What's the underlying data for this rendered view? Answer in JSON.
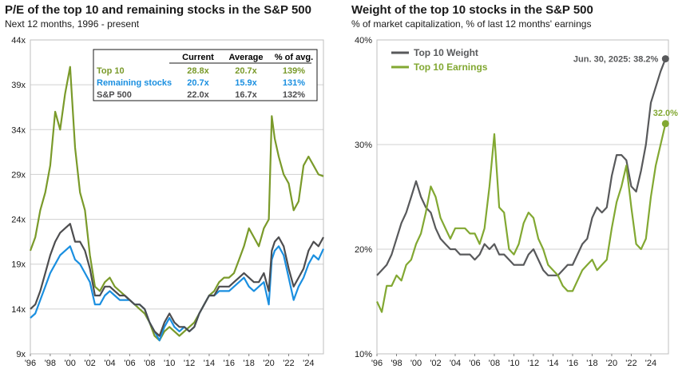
{
  "colors": {
    "top10": "#7a9a2a",
    "remaining": "#1a8fe0",
    "sp500": "#4d4d4f",
    "weight": "#58595b",
    "earnings": "#82a832",
    "grid": "#d0d0d0"
  },
  "left": {
    "title": "P/E of the top 10 and remaining stocks in the S&P 500",
    "subtitle": "Next 12 months, 1996 - present",
    "table": {
      "headers": [
        "",
        "Current",
        "Average",
        "% of avg."
      ],
      "rows": [
        {
          "name": "Top 10",
          "current": "28.8x",
          "average": "20.7x",
          "pct": "139%",
          "color": "#7a9a2a"
        },
        {
          "name": "Remaining stocks",
          "current": "20.7x",
          "average": "15.9x",
          "pct": "131%",
          "color": "#1a8fe0"
        },
        {
          "name": "S&P 500",
          "current": "22.0x",
          "average": "16.7x",
          "pct": "132%",
          "color": "#4d4d4f"
        }
      ]
    }
  },
  "right": {
    "title": "Weight of the top 10 stocks in the S&P 500",
    "subtitle": "% of market capitalization, % of last 12 months' earnings",
    "annotation_weight": "Jun. 30, 2025: 38.2%",
    "annotation_earnings": "32.0%"
  },
  "chart_data": [
    {
      "type": "line",
      "title": "P/E of the top 10 and remaining stocks in the S&P 500",
      "subtitle": "Next 12 months, 1996 - present",
      "ylim": [
        9,
        44
      ],
      "yticks": [
        9,
        14,
        19,
        24,
        29,
        34,
        39,
        44
      ],
      "ytick_labels": [
        "9x",
        "14x",
        "19x",
        "24x",
        "29x",
        "34x",
        "39x",
        "44x"
      ],
      "xlim": [
        1996,
        2025.5
      ],
      "xticks": [
        1996,
        1998,
        2000,
        2002,
        2004,
        2006,
        2008,
        2010,
        2012,
        2014,
        2016,
        2018,
        2020,
        2022,
        2024
      ],
      "xtick_labels": [
        "'96",
        "'98",
        "'00",
        "'02",
        "'04",
        "'06",
        "'08",
        "'10",
        "'12",
        "'14",
        "'16",
        "'18",
        "'20",
        "'22",
        "'24"
      ],
      "series": [
        {
          "name": "Top 10",
          "color": "#7a9a2a",
          "x": [
            1996.0,
            1996.5,
            1997.0,
            1997.5,
            1998.0,
            1998.5,
            1999.0,
            1999.5,
            2000.0,
            2000.5,
            2001.0,
            2001.5,
            2002.0,
            2002.5,
            2003.0,
            2003.5,
            2004.0,
            2004.5,
            2005.0,
            2005.5,
            2006.0,
            2006.5,
            2007.0,
            2007.5,
            2008.0,
            2008.5,
            2009.0,
            2009.5,
            2010.0,
            2010.5,
            2011.0,
            2011.5,
            2012.0,
            2012.5,
            2013.0,
            2013.5,
            2014.0,
            2014.5,
            2015.0,
            2015.5,
            2016.0,
            2016.5,
            2017.0,
            2017.5,
            2018.0,
            2018.5,
            2019.0,
            2019.5,
            2020.0,
            2020.3,
            2020.6,
            2021.0,
            2021.5,
            2022.0,
            2022.5,
            2023.0,
            2023.5,
            2024.0,
            2024.5,
            2025.0,
            2025.5
          ],
          "values": [
            20.5,
            22.0,
            25.0,
            27.0,
            30.0,
            36.0,
            34.0,
            38.0,
            41.0,
            32.0,
            27.0,
            25.0,
            20.0,
            16.5,
            16.0,
            17.0,
            17.5,
            16.5,
            16.0,
            15.5,
            15.0,
            14.5,
            14.0,
            13.5,
            12.5,
            11.0,
            10.5,
            11.5,
            12.0,
            11.5,
            11.0,
            11.5,
            12.0,
            12.5,
            13.5,
            14.5,
            15.5,
            16.0,
            17.0,
            17.5,
            17.5,
            18.0,
            19.5,
            21.0,
            23.0,
            22.0,
            21.0,
            23.0,
            24.0,
            35.5,
            33.0,
            31.0,
            29.0,
            28.0,
            25.0,
            26.0,
            30.0,
            31.0,
            30.0,
            29.0,
            28.8
          ]
        },
        {
          "name": "Remaining stocks",
          "color": "#1a8fe0",
          "x": [
            1996.0,
            1996.5,
            1997.0,
            1997.5,
            1998.0,
            1998.5,
            1999.0,
            1999.5,
            2000.0,
            2000.5,
            2001.0,
            2001.5,
            2002.0,
            2002.5,
            2003.0,
            2003.5,
            2004.0,
            2004.5,
            2005.0,
            2005.5,
            2006.0,
            2006.5,
            2007.0,
            2007.5,
            2008.0,
            2008.5,
            2009.0,
            2009.5,
            2010.0,
            2010.5,
            2011.0,
            2011.5,
            2012.0,
            2012.5,
            2013.0,
            2013.5,
            2014.0,
            2014.5,
            2015.0,
            2015.5,
            2016.0,
            2016.5,
            2017.0,
            2017.5,
            2018.0,
            2018.5,
            2019.0,
            2019.5,
            2020.0,
            2020.3,
            2020.6,
            2021.0,
            2021.5,
            2022.0,
            2022.5,
            2023.0,
            2023.5,
            2024.0,
            2024.5,
            2025.0,
            2025.5
          ],
          "values": [
            13.0,
            13.5,
            15.0,
            16.5,
            18.0,
            19.0,
            20.0,
            20.5,
            21.0,
            19.5,
            19.0,
            18.0,
            17.0,
            14.5,
            14.5,
            15.5,
            16.0,
            15.5,
            15.0,
            15.0,
            15.0,
            14.5,
            14.5,
            14.0,
            12.5,
            11.5,
            10.5,
            12.0,
            13.0,
            12.0,
            11.5,
            12.0,
            11.5,
            12.0,
            13.5,
            14.5,
            15.5,
            15.5,
            16.0,
            16.0,
            16.0,
            16.5,
            17.0,
            17.5,
            16.5,
            16.0,
            16.5,
            17.0,
            14.5,
            19.5,
            20.5,
            21.0,
            20.0,
            17.5,
            15.0,
            16.5,
            17.5,
            19.0,
            20.0,
            19.5,
            20.7
          ]
        },
        {
          "name": "S&P 500",
          "color": "#4d4d4f",
          "x": [
            1996.0,
            1996.5,
            1997.0,
            1997.5,
            1998.0,
            1998.5,
            1999.0,
            1999.5,
            2000.0,
            2000.5,
            2001.0,
            2001.5,
            2002.0,
            2002.5,
            2003.0,
            2003.5,
            2004.0,
            2004.5,
            2005.0,
            2005.5,
            2006.0,
            2006.5,
            2007.0,
            2007.5,
            2008.0,
            2008.5,
            2009.0,
            2009.5,
            2010.0,
            2010.5,
            2011.0,
            2011.5,
            2012.0,
            2012.5,
            2013.0,
            2013.5,
            2014.0,
            2014.5,
            2015.0,
            2015.5,
            2016.0,
            2016.5,
            2017.0,
            2017.5,
            2018.0,
            2018.5,
            2019.0,
            2019.5,
            2020.0,
            2020.3,
            2020.6,
            2021.0,
            2021.5,
            2022.0,
            2022.5,
            2023.0,
            2023.5,
            2024.0,
            2024.5,
            2025.0,
            2025.5
          ],
          "values": [
            14.0,
            14.5,
            16.0,
            18.0,
            20.0,
            21.5,
            22.5,
            23.0,
            23.5,
            21.5,
            21.5,
            20.5,
            18.5,
            15.5,
            15.5,
            16.5,
            16.5,
            16.0,
            15.5,
            15.5,
            15.0,
            14.5,
            14.5,
            14.0,
            12.5,
            11.5,
            11.0,
            12.5,
            13.5,
            12.5,
            12.0,
            12.0,
            11.5,
            12.0,
            13.5,
            14.5,
            15.5,
            15.5,
            16.5,
            16.5,
            16.5,
            17.0,
            17.5,
            18.0,
            17.5,
            17.0,
            17.0,
            18.0,
            16.0,
            20.5,
            21.5,
            22.0,
            21.0,
            18.5,
            16.5,
            17.5,
            18.5,
            20.5,
            21.5,
            21.0,
            22.0
          ]
        }
      ]
    },
    {
      "type": "line",
      "title": "Weight of the top 10 stocks in the S&P 500",
      "subtitle": "% of market capitalization, % of last 12 months' earnings",
      "ylim": [
        10,
        40
      ],
      "yticks": [
        10,
        20,
        30,
        40
      ],
      "ytick_labels": [
        "10%",
        "20%",
        "30%",
        "40%"
      ],
      "xlim": [
        1996,
        2025.8
      ],
      "xticks": [
        1996,
        1998,
        2000,
        2002,
        2004,
        2006,
        2008,
        2010,
        2012,
        2014,
        2016,
        2018,
        2020,
        2022,
        2024
      ],
      "xtick_labels": [
        "'96",
        "'98",
        "'00",
        "'02",
        "'04",
        "'06",
        "'08",
        "'10",
        "'12",
        "'14",
        "'16",
        "'18",
        "'20",
        "'22",
        "'24"
      ],
      "annotations": [
        {
          "text": "Jun. 30, 2025: 38.2%",
          "x": 2025.5,
          "y": 38.2
        },
        {
          "text": "32.0%",
          "x": 2025.5,
          "y": 32.0
        }
      ],
      "series": [
        {
          "name": "Top 10 Weight",
          "color": "#58595b",
          "x": [
            1996.0,
            1996.5,
            1997.0,
            1997.5,
            1998.0,
            1998.5,
            1999.0,
            1999.5,
            2000.0,
            2000.5,
            2001.0,
            2001.5,
            2002.0,
            2002.5,
            2003.0,
            2003.5,
            2004.0,
            2004.5,
            2005.0,
            2005.5,
            2006.0,
            2006.5,
            2007.0,
            2007.5,
            2008.0,
            2008.5,
            2009.0,
            2009.5,
            2010.0,
            2010.5,
            2011.0,
            2011.5,
            2012.0,
            2012.5,
            2013.0,
            2013.5,
            2014.0,
            2014.5,
            2015.0,
            2015.5,
            2016.0,
            2016.5,
            2017.0,
            2017.5,
            2018.0,
            2018.5,
            2019.0,
            2019.5,
            2020.0,
            2020.5,
            2021.0,
            2021.5,
            2022.0,
            2022.5,
            2023.0,
            2023.5,
            2024.0,
            2024.5,
            2025.0,
            2025.5
          ],
          "values": [
            17.5,
            18.0,
            18.5,
            19.5,
            21.0,
            22.5,
            23.5,
            25.0,
            26.5,
            25.0,
            24.0,
            23.5,
            22.0,
            21.0,
            20.5,
            20.0,
            20.0,
            19.5,
            19.5,
            19.5,
            19.0,
            19.5,
            20.5,
            20.0,
            20.5,
            19.5,
            19.5,
            19.0,
            18.5,
            18.5,
            18.5,
            19.5,
            20.0,
            19.0,
            18.0,
            17.5,
            17.5,
            17.5,
            18.0,
            18.5,
            18.5,
            19.5,
            20.5,
            21.0,
            23.0,
            24.0,
            23.5,
            24.0,
            27.0,
            29.0,
            29.0,
            28.5,
            26.0,
            25.5,
            27.5,
            30.0,
            34.0,
            35.5,
            37.0,
            38.2
          ]
        },
        {
          "name": "Top 10 Earnings",
          "color": "#82a832",
          "x": [
            1996.0,
            1996.5,
            1997.0,
            1997.5,
            1998.0,
            1998.5,
            1999.0,
            1999.5,
            2000.0,
            2000.5,
            2001.0,
            2001.5,
            2002.0,
            2002.5,
            2003.0,
            2003.5,
            2004.0,
            2004.5,
            2005.0,
            2005.5,
            2006.0,
            2006.5,
            2007.0,
            2007.5,
            2008.0,
            2008.5,
            2009.0,
            2009.5,
            2010.0,
            2010.5,
            2011.0,
            2011.5,
            2012.0,
            2012.5,
            2013.0,
            2013.5,
            2014.0,
            2014.5,
            2015.0,
            2015.5,
            2016.0,
            2016.5,
            2017.0,
            2017.5,
            2018.0,
            2018.5,
            2019.0,
            2019.5,
            2020.0,
            2020.5,
            2021.0,
            2021.5,
            2022.0,
            2022.5,
            2023.0,
            2023.5,
            2024.0,
            2024.5,
            2025.0,
            2025.5
          ],
          "values": [
            15.0,
            14.0,
            16.5,
            16.5,
            17.5,
            17.0,
            18.5,
            19.0,
            20.5,
            21.5,
            23.5,
            26.0,
            25.0,
            23.0,
            22.0,
            21.0,
            22.0,
            22.0,
            22.0,
            21.5,
            21.5,
            20.5,
            22.0,
            26.0,
            31.0,
            24.0,
            23.5,
            20.0,
            19.5,
            20.5,
            22.5,
            23.5,
            23.0,
            21.0,
            20.0,
            18.5,
            18.0,
            17.5,
            16.5,
            16.0,
            16.0,
            17.0,
            18.0,
            18.5,
            19.0,
            18.0,
            18.5,
            19.0,
            22.0,
            24.5,
            26.0,
            28.0,
            24.0,
            20.5,
            20.0,
            21.0,
            25.0,
            28.0,
            30.0,
            32.0
          ]
        }
      ]
    }
  ]
}
